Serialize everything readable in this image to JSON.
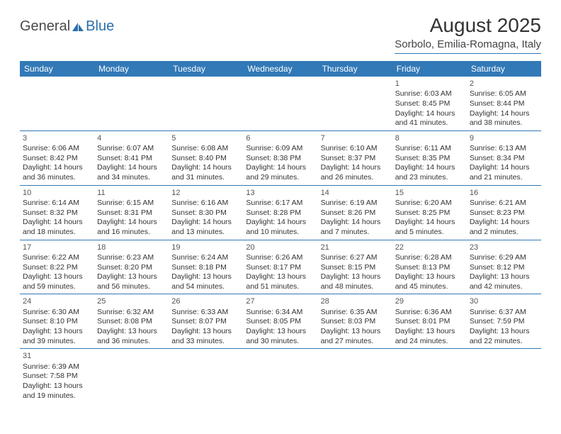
{
  "logo": {
    "part1": "General",
    "part2": "Blue"
  },
  "title": "August 2025",
  "location": "Sorbolo, Emilia-Romagna, Italy",
  "colors": {
    "header_bg": "#3279b7",
    "header_text": "#ffffff",
    "border": "#3279b7",
    "text": "#333333",
    "logo_blue": "#2b6fab",
    "logo_gray": "#4a4a4a"
  },
  "weekdays": [
    "Sunday",
    "Monday",
    "Tuesday",
    "Wednesday",
    "Thursday",
    "Friday",
    "Saturday"
  ],
  "weeks": [
    [
      null,
      null,
      null,
      null,
      null,
      {
        "n": "1",
        "sr": "6:03 AM",
        "ss": "8:45 PM",
        "dl": "14 hours and 41 minutes."
      },
      {
        "n": "2",
        "sr": "6:05 AM",
        "ss": "8:44 PM",
        "dl": "14 hours and 38 minutes."
      }
    ],
    [
      {
        "n": "3",
        "sr": "6:06 AM",
        "ss": "8:42 PM",
        "dl": "14 hours and 36 minutes."
      },
      {
        "n": "4",
        "sr": "6:07 AM",
        "ss": "8:41 PM",
        "dl": "14 hours and 34 minutes."
      },
      {
        "n": "5",
        "sr": "6:08 AM",
        "ss": "8:40 PM",
        "dl": "14 hours and 31 minutes."
      },
      {
        "n": "6",
        "sr": "6:09 AM",
        "ss": "8:38 PM",
        "dl": "14 hours and 29 minutes."
      },
      {
        "n": "7",
        "sr": "6:10 AM",
        "ss": "8:37 PM",
        "dl": "14 hours and 26 minutes."
      },
      {
        "n": "8",
        "sr": "6:11 AM",
        "ss": "8:35 PM",
        "dl": "14 hours and 23 minutes."
      },
      {
        "n": "9",
        "sr": "6:13 AM",
        "ss": "8:34 PM",
        "dl": "14 hours and 21 minutes."
      }
    ],
    [
      {
        "n": "10",
        "sr": "6:14 AM",
        "ss": "8:32 PM",
        "dl": "14 hours and 18 minutes."
      },
      {
        "n": "11",
        "sr": "6:15 AM",
        "ss": "8:31 PM",
        "dl": "14 hours and 16 minutes."
      },
      {
        "n": "12",
        "sr": "6:16 AM",
        "ss": "8:30 PM",
        "dl": "14 hours and 13 minutes."
      },
      {
        "n": "13",
        "sr": "6:17 AM",
        "ss": "8:28 PM",
        "dl": "14 hours and 10 minutes."
      },
      {
        "n": "14",
        "sr": "6:19 AM",
        "ss": "8:26 PM",
        "dl": "14 hours and 7 minutes."
      },
      {
        "n": "15",
        "sr": "6:20 AM",
        "ss": "8:25 PM",
        "dl": "14 hours and 5 minutes."
      },
      {
        "n": "16",
        "sr": "6:21 AM",
        "ss": "8:23 PM",
        "dl": "14 hours and 2 minutes."
      }
    ],
    [
      {
        "n": "17",
        "sr": "6:22 AM",
        "ss": "8:22 PM",
        "dl": "13 hours and 59 minutes."
      },
      {
        "n": "18",
        "sr": "6:23 AM",
        "ss": "8:20 PM",
        "dl": "13 hours and 56 minutes."
      },
      {
        "n": "19",
        "sr": "6:24 AM",
        "ss": "8:18 PM",
        "dl": "13 hours and 54 minutes."
      },
      {
        "n": "20",
        "sr": "6:26 AM",
        "ss": "8:17 PM",
        "dl": "13 hours and 51 minutes."
      },
      {
        "n": "21",
        "sr": "6:27 AM",
        "ss": "8:15 PM",
        "dl": "13 hours and 48 minutes."
      },
      {
        "n": "22",
        "sr": "6:28 AM",
        "ss": "8:13 PM",
        "dl": "13 hours and 45 minutes."
      },
      {
        "n": "23",
        "sr": "6:29 AM",
        "ss": "8:12 PM",
        "dl": "13 hours and 42 minutes."
      }
    ],
    [
      {
        "n": "24",
        "sr": "6:30 AM",
        "ss": "8:10 PM",
        "dl": "13 hours and 39 minutes."
      },
      {
        "n": "25",
        "sr": "6:32 AM",
        "ss": "8:08 PM",
        "dl": "13 hours and 36 minutes."
      },
      {
        "n": "26",
        "sr": "6:33 AM",
        "ss": "8:07 PM",
        "dl": "13 hours and 33 minutes."
      },
      {
        "n": "27",
        "sr": "6:34 AM",
        "ss": "8:05 PM",
        "dl": "13 hours and 30 minutes."
      },
      {
        "n": "28",
        "sr": "6:35 AM",
        "ss": "8:03 PM",
        "dl": "13 hours and 27 minutes."
      },
      {
        "n": "29",
        "sr": "6:36 AM",
        "ss": "8:01 PM",
        "dl": "13 hours and 24 minutes."
      },
      {
        "n": "30",
        "sr": "6:37 AM",
        "ss": "7:59 PM",
        "dl": "13 hours and 22 minutes."
      }
    ],
    [
      {
        "n": "31",
        "sr": "6:39 AM",
        "ss": "7:58 PM",
        "dl": "13 hours and 19 minutes."
      },
      null,
      null,
      null,
      null,
      null,
      null
    ]
  ],
  "labels": {
    "sunrise": "Sunrise: ",
    "sunset": "Sunset: ",
    "daylight": "Daylight: "
  }
}
